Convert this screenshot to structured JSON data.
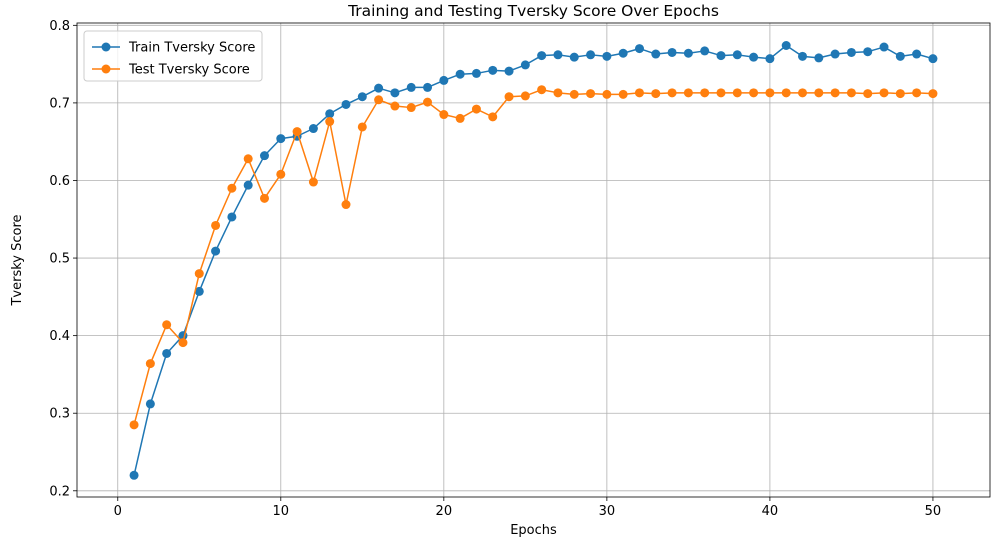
{
  "chart_data": {
    "type": "line",
    "title": "Training and Testing Tversky Score Over Epochs",
    "xlabel": "Epochs",
    "ylabel": "Tversky Score",
    "xlim": [
      -2.5,
      53.5
    ],
    "ylim": [
      0.192,
      0.803
    ],
    "xticks": [
      0,
      10,
      20,
      30,
      40,
      50
    ],
    "yticks": [
      0.2,
      0.3,
      0.4,
      0.5,
      0.6,
      0.7,
      0.8
    ],
    "grid": true,
    "legend_position": "top-left",
    "x": [
      1,
      2,
      3,
      4,
      5,
      6,
      7,
      8,
      9,
      10,
      11,
      12,
      13,
      14,
      15,
      16,
      17,
      18,
      19,
      20,
      21,
      22,
      23,
      24,
      25,
      26,
      27,
      28,
      29,
      30,
      31,
      32,
      33,
      34,
      35,
      36,
      37,
      38,
      39,
      40,
      41,
      42,
      43,
      44,
      45,
      46,
      47,
      48,
      49,
      50
    ],
    "series": [
      {
        "name": "Train Tversky Score",
        "color": "#1f77b4",
        "values": [
          0.22,
          0.312,
          0.377,
          0.4,
          0.457,
          0.509,
          0.553,
          0.594,
          0.632,
          0.654,
          0.657,
          0.667,
          0.686,
          0.698,
          0.708,
          0.719,
          0.713,
          0.72,
          0.72,
          0.729,
          0.737,
          0.738,
          0.742,
          0.741,
          0.749,
          0.761,
          0.762,
          0.759,
          0.762,
          0.76,
          0.764,
          0.77,
          0.763,
          0.765,
          0.764,
          0.767,
          0.761,
          0.762,
          0.759,
          0.757,
          0.774,
          0.76,
          0.758,
          0.763,
          0.765,
          0.766,
          0.772,
          0.76,
          0.763,
          0.757
        ]
      },
      {
        "name": "Test Tversky Score",
        "color": "#ff7f0e",
        "values": [
          0.285,
          0.364,
          0.414,
          0.391,
          0.48,
          0.542,
          0.59,
          0.628,
          0.577,
          0.608,
          0.663,
          0.598,
          0.676,
          0.569,
          0.669,
          0.704,
          0.696,
          0.694,
          0.701,
          0.685,
          0.68,
          0.692,
          0.682,
          0.708,
          0.709,
          0.717,
          0.713,
          0.711,
          0.712,
          0.711,
          0.711,
          0.713,
          0.712,
          0.713,
          0.713,
          0.713,
          0.713,
          0.713,
          0.713,
          0.713,
          0.713,
          0.713,
          0.713,
          0.713,
          0.713,
          0.712,
          0.713,
          0.712,
          0.713,
          0.712
        ]
      }
    ]
  }
}
